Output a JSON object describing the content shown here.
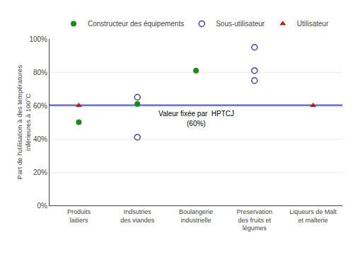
{
  "chart_data": {
    "type": "scatter",
    "categories": [
      "Produits\nlaitiers",
      "Indsutries\ndes viandes",
      "Boulangerie\nindustrielle",
      "Preservation\ndes fruits et\nlégumes",
      "Liqueurs de Malt\net malterie"
    ],
    "series": [
      {
        "name": "Constructeur des équipements",
        "color": "#1a8a1a",
        "marker": "circle",
        "x": [
          "Produits\nlaitiers",
          "Indsutries\ndes viandes",
          "Boulangerie\nindustrielle"
        ],
        "values": [
          50,
          61,
          81
        ]
      },
      {
        "name": "Sous-utilisateur",
        "color": "#4040a0",
        "marker": "circle-open",
        "x": [
          "Indsutries\ndes viandes",
          "Indsutries\ndes viandes",
          "Preservation\ndes fruits et\nlégumes",
          "Preservation\ndes fruits et\nlégumes",
          "Preservation\ndes fruits et\nlégumes"
        ],
        "values": [
          65,
          41,
          95,
          81,
          75
        ]
      },
      {
        "name": "Utilisateur",
        "color": "#bb2020",
        "marker": "triangle-up",
        "x": [
          "Produits\nlaitiers",
          "Liqueurs de Malt\net malterie"
        ],
        "values": [
          60,
          60
        ]
      }
    ],
    "reference_line": {
      "value": 60,
      "color": "#1010cc"
    },
    "annotations": [
      "Valeur fixée par  HPTCJ",
      "(60%)"
    ],
    "y_label": "Part de l'utilisation à des températures\ninférieures à 100°C",
    "ylim": [
      0,
      100
    ],
    "yticks": [
      {
        "value": 0,
        "label": "0%"
      },
      {
        "value": 20,
        "label": "20%"
      },
      {
        "value": 40,
        "label": "40%"
      },
      {
        "value": 60,
        "label": "60%"
      },
      {
        "value": 80,
        "label": "80%"
      },
      {
        "value": 100,
        "label": "100%"
      }
    ],
    "grid": true,
    "legend": "top"
  }
}
